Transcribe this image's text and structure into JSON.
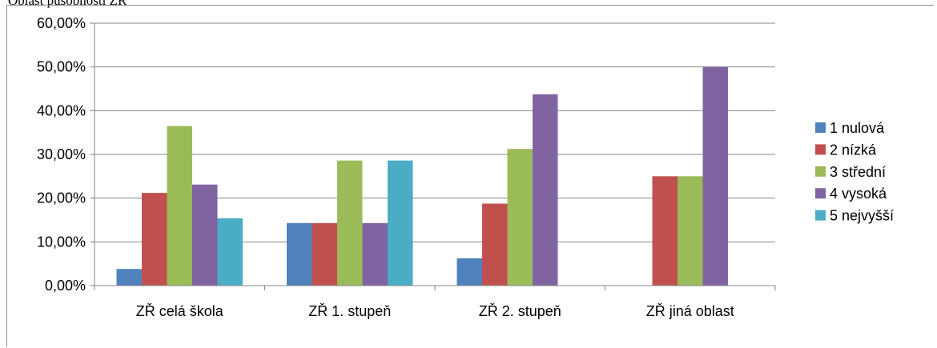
{
  "caption": "Oblast působnosti ZŘ",
  "chart_data": {
    "type": "bar",
    "title": "",
    "xlabel": "",
    "ylabel": "",
    "ylim": [
      0,
      0.6
    ],
    "yticks": [
      0,
      0.1,
      0.2,
      0.3,
      0.4,
      0.5,
      0.6
    ],
    "ytick_labels": [
      "0,00%",
      "10,00%",
      "20,00%",
      "30,00%",
      "40,00%",
      "50,00%",
      "60,00%"
    ],
    "grid": true,
    "legend_position": "right",
    "categories": [
      "ZŘ celá škola",
      "ZŘ 1. stupeň",
      "ZŘ 2. stupeň",
      "ZŘ jiná oblast"
    ],
    "series": [
      {
        "name": "1 nulová",
        "color": "#4f81bd",
        "values": [
          0.038,
          0.143,
          0.0625,
          0
        ]
      },
      {
        "name": "2 nízká",
        "color": "#c0504d",
        "values": [
          0.212,
          0.143,
          0.1875,
          0.25
        ]
      },
      {
        "name": "3 střední",
        "color": "#9bbb59",
        "values": [
          0.365,
          0.286,
          0.3125,
          0.25
        ]
      },
      {
        "name": " 4 vysoká",
        "color": "#8064a2",
        "values": [
          0.231,
          0.143,
          0.4375,
          0.5
        ]
      },
      {
        "name": "5 nejvyšší",
        "color": "#4bacc6",
        "values": [
          0.154,
          0.286,
          0,
          0
        ]
      }
    ]
  }
}
